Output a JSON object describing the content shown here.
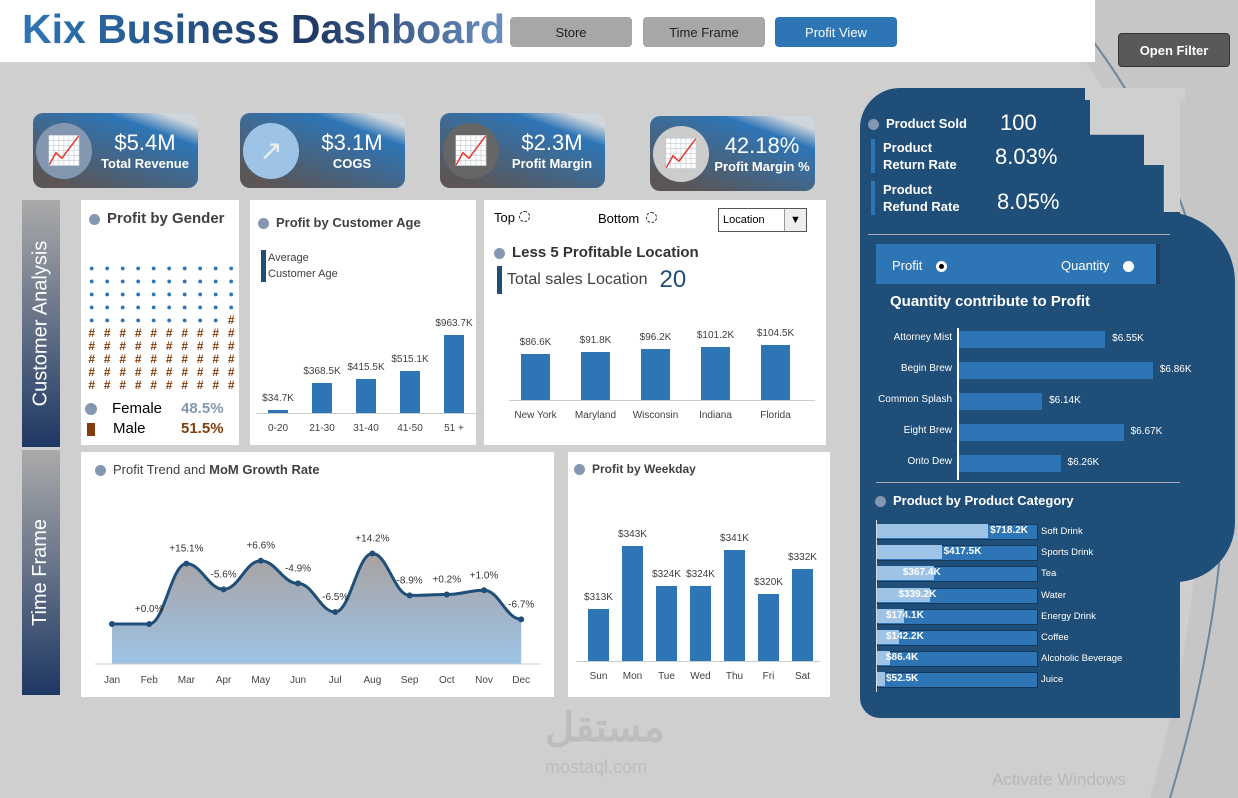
{
  "header": {
    "title": "Kix Business Dashboard",
    "buttons": [
      "Store",
      "Time Frame",
      "Profit View"
    ],
    "active": "Profit View",
    "open_filter": "Open Filter"
  },
  "kpis": [
    {
      "value": "$5.4M",
      "label": "Total Revenue",
      "icon": "chart-up-icon"
    },
    {
      "value": "$3.1M",
      "label": "COGS",
      "icon": "trend-arrow-icon"
    },
    {
      "value": "$2.3M",
      "label": "Profit Margin",
      "icon": "chart-up-icon"
    },
    {
      "value": "42.18%",
      "label": "Profit Margin %",
      "icon": "chart-up-icon"
    }
  ],
  "side_labels": {
    "customer": "Customer Analysis",
    "time": "Time Frame"
  },
  "gender": {
    "title": "Profit by Gender",
    "female_label": "Female",
    "female_pct": "48.5%",
    "male_label": "Male",
    "male_pct": "51.5%",
    "female_count": 49,
    "male_count": 51,
    "female_color": "#2e75b6",
    "male_color": "#843c0c",
    "male_symbol": "#"
  },
  "age": {
    "title": "Profit by Customer Age",
    "legend": [
      "Average",
      "Customer Age"
    ]
  },
  "location": {
    "top_label": "Top",
    "bottom_label": "Bottom",
    "dropdown": "Location",
    "title": "Less 5 Profitable  Location",
    "total_label": "Total sales Location",
    "total_value": "20"
  },
  "trend": {
    "title_plain": "Profit Trend and ",
    "title_bold": "MoM Growth Rate"
  },
  "weekday": {
    "title": "Profit by Weekday"
  },
  "right": {
    "product_sold_label": "Product Sold",
    "product_sold": "100",
    "return_label": [
      "Product",
      "Return Rate"
    ],
    "return_rate": "8.03%",
    "refund_label": [
      "Product",
      "Refund Rate"
    ],
    "refund_rate": "8.05%",
    "toggle": {
      "profit": "Profit",
      "quantity": "Quantity",
      "selected": "Profit"
    },
    "qty_title": "Quantity contribute to Profit",
    "cat_title": "Product by Product Category"
  },
  "watermark": {
    "arabic": "مستقل",
    "latin": "mostaql.com"
  },
  "activate": "Activate Windows",
  "chart_data": [
    {
      "type": "bar",
      "id": "age",
      "categories": [
        "0-20",
        "21-30",
        "31-40",
        "41-50",
        "51 +"
      ],
      "values": [
        34.7,
        368.5,
        415.5,
        515.1,
        963.7
      ],
      "labels": [
        "$34.7K",
        "$368.5K",
        "$415.5K",
        "$515.1K",
        "$963.7K"
      ],
      "ylim": [
        0,
        1000
      ]
    },
    {
      "type": "bar",
      "id": "location",
      "categories": [
        "New York",
        "Maryland",
        "Wisconsin",
        "Indiana",
        "Florida"
      ],
      "values": [
        86.6,
        91.8,
        96.2,
        101.2,
        104.5
      ],
      "labels": [
        "$86.6K",
        "$91.8K",
        "$96.2K",
        "$101.2K",
        "$104.5K"
      ],
      "ylim": [
        0,
        110
      ]
    },
    {
      "type": "area",
      "id": "trend",
      "categories": [
        "Jan",
        "Feb",
        "Mar",
        "Apr",
        "May",
        "Jun",
        "Jul",
        "Aug",
        "Sep",
        "Oct",
        "Nov",
        "Dec"
      ],
      "growth": [
        null,
        0.0,
        15.1,
        -5.6,
        6.6,
        -4.9,
        -6.5,
        14.2,
        -8.9,
        0.2,
        1.0,
        -6.7
      ],
      "labels": [
        "",
        "+0.0%",
        "+15.1%",
        "-5.6%",
        "+6.6%",
        "-4.9%",
        "-6.5%",
        "+14.2%",
        "-8.9%",
        "+0.2%",
        "+1.0%",
        "-6.7%"
      ]
    },
    {
      "type": "bar",
      "id": "weekday",
      "categories": [
        "Sun",
        "Mon",
        "Tue",
        "Wed",
        "Thu",
        "Fri",
        "Sat"
      ],
      "values": [
        313,
        343,
        324,
        324,
        341,
        320,
        332
      ],
      "labels": [
        "$313K",
        "$343K",
        "$324K",
        "$324K",
        "$341K",
        "$320K",
        "$332K"
      ],
      "ylim": [
        288,
        350
      ]
    },
    {
      "type": "bar",
      "id": "quantity",
      "orientation": "horizontal",
      "categories": [
        "Attorney Mist",
        "Begin Brew",
        "Common Splash",
        "Eight Brew",
        "Onto Dew"
      ],
      "values": [
        6.55,
        6.86,
        6.14,
        6.67,
        6.26
      ],
      "labels": [
        "$6.55K",
        "$6.86K",
        "$6.14K",
        "$6.67K",
        "$6.26K"
      ],
      "xlim": [
        5.6,
        6.9
      ]
    },
    {
      "type": "bar",
      "id": "category",
      "orientation": "horizontal",
      "categories": [
        "Soft Drink",
        "Sports Drink",
        "Tea",
        "Water",
        "Energy Drink",
        "Coffee",
        "Alcoholic Beverage",
        "Juice"
      ],
      "values": [
        718.2,
        417.5,
        367.4,
        339.2,
        174.1,
        142.2,
        86.4,
        52.5
      ],
      "labels": [
        "$718.2K",
        "$417.5K",
        "$367.4K",
        "$339.2K",
        "$174.1K",
        "$142.2K",
        "$86.4K",
        "$52.5K"
      ],
      "xlim": [
        0,
        1040
      ]
    }
  ]
}
